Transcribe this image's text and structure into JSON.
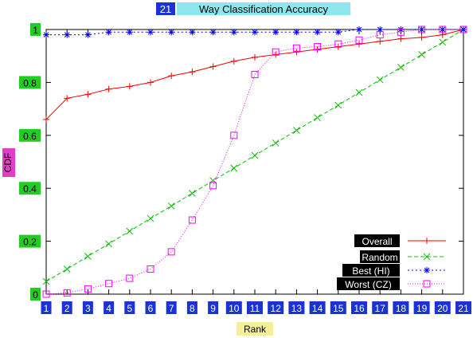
{
  "chart_data": {
    "type": "line",
    "title_num": "21",
    "title_rest": "Way Classification Accuracy",
    "xlabel": "Rank",
    "ylabel": "CDF",
    "x": [
      1,
      2,
      3,
      4,
      5,
      6,
      7,
      8,
      9,
      10,
      11,
      12,
      13,
      14,
      15,
      16,
      17,
      18,
      19,
      20,
      21
    ],
    "xlim": [
      1,
      21
    ],
    "ylim": [
      0,
      1
    ],
    "yticks": [
      "0",
      "0.2",
      "0.4",
      "0.6",
      "0.8",
      "1"
    ],
    "ytick_values": [
      0,
      0.2,
      0.4,
      0.6,
      0.8,
      1
    ],
    "grid": false,
    "legend_position": "bottom-right",
    "series": [
      {
        "name": "Overall",
        "color": "#ff0000",
        "marker": "plus",
        "dash": "",
        "values": [
          0.66,
          0.74,
          0.755,
          0.775,
          0.785,
          0.8,
          0.825,
          0.84,
          0.86,
          0.88,
          0.895,
          0.905,
          0.915,
          0.925,
          0.935,
          0.945,
          0.955,
          0.965,
          0.97,
          0.98,
          1.0
        ]
      },
      {
        "name": "Random",
        "color": "#00c000",
        "marker": "x",
        "dash": "5,3",
        "values": [
          0.048,
          0.095,
          0.143,
          0.19,
          0.238,
          0.286,
          0.333,
          0.381,
          0.429,
          0.476,
          0.524,
          0.571,
          0.619,
          0.667,
          0.714,
          0.762,
          0.81,
          0.857,
          0.905,
          0.952,
          1.0
        ]
      },
      {
        "name": "Best (HI)",
        "color": "#0000ff",
        "marker": "star",
        "dash": "2,3",
        "values": [
          0.98,
          0.98,
          0.98,
          0.99,
          0.99,
          0.99,
          0.99,
          0.99,
          0.99,
          0.99,
          0.99,
          0.99,
          0.99,
          0.99,
          0.99,
          1.0,
          1.0,
          1.0,
          1.0,
          1.0,
          1.0
        ]
      },
      {
        "name": "Worst (CZ)",
        "color": "#ff00ff",
        "marker": "square",
        "dash": "1,2",
        "values": [
          0.0,
          0.005,
          0.02,
          0.04,
          0.06,
          0.095,
          0.16,
          0.28,
          0.41,
          0.6,
          0.83,
          0.915,
          0.93,
          0.935,
          0.945,
          0.96,
          0.98,
          0.99,
          1.0,
          1.0,
          1.0
        ]
      }
    ]
  }
}
